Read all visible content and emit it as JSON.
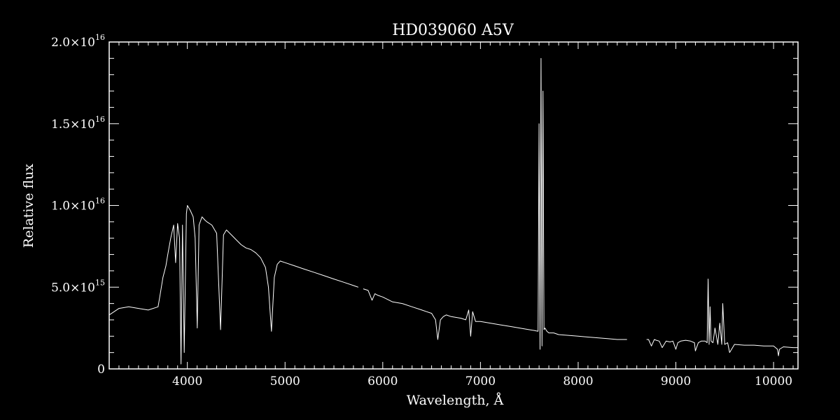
{
  "chart_data": {
    "type": "line",
    "title": "HD039060   A5V",
    "xlabel": "Wavelength, Å",
    "ylabel": "Relative flux",
    "xlim": [
      3200,
      10250
    ],
    "ylim": [
      0,
      2e+16
    ],
    "x_ticks": [
      {
        "value": 4000,
        "label": "4000"
      },
      {
        "value": 5000,
        "label": "5000"
      },
      {
        "value": 6000,
        "label": "6000"
      },
      {
        "value": 7000,
        "label": "7000"
      },
      {
        "value": 8000,
        "label": "8000"
      },
      {
        "value": 9000,
        "label": "9000"
      },
      {
        "value": 10000,
        "label": "10000"
      }
    ],
    "y_ticks": [
      {
        "value": 0,
        "mantissa": "0",
        "exponent": ""
      },
      {
        "value": 5000000000000000.0,
        "mantissa": "5.0×10",
        "exponent": "15"
      },
      {
        "value": 1e+16,
        "mantissa": "1.0×10",
        "exponent": "16"
      },
      {
        "value": 1.5e+16,
        "mantissa": "1.5×10",
        "exponent": "16"
      },
      {
        "value": 2e+16,
        "mantissa": "2.0×10",
        "exponent": "16"
      }
    ],
    "grid": false,
    "background": "#000000",
    "line_color": "#ffffff",
    "series": [
      {
        "segments": [
          {
            "x": [
              3200,
              3300,
              3400,
              3500,
              3600,
              3700,
              3720,
              3750,
              3780,
              3800,
              3830,
              3860,
              3880,
              3900,
              3920,
              3935,
              3950,
              3968,
              3990,
              4000,
              4030,
              4060,
              4080,
              4101,
              4120,
              4150,
              4180,
              4200,
              4250,
              4300,
              4340,
              4370,
              4400,
              4450,
              4500,
              4550,
              4600,
              4650,
              4700,
              4750,
              4800,
              4830,
              4861,
              4890,
              4920,
              4950,
              5000,
              5100,
              5200,
              5300,
              5400,
              5500,
              5600,
              5700,
              5750
            ],
            "y": [
              3300000000000000.0,
              3700000000000000.0,
              3800000000000000.0,
              3700000000000000.0,
              3600000000000000.0,
              3800000000000000.0,
              4500000000000000.0,
              5600000000000000.0,
              6300000000000000.0,
              7000000000000000.0,
              8000000000000000.0,
              8800000000000000.0,
              6500000000000000.0,
              8900000000000000.0,
              8000000000000000.0,
              300000000000000.0,
              8800000000000000.0,
              1000000000000000.0,
              9500000000000000.0,
              1e+16,
              9700000000000000.0,
              9300000000000000.0,
              8000000000000000.0,
              2500000000000000.0,
              8800000000000000.0,
              9300000000000000.0,
              9100000000000000.0,
              9000000000000000.0,
              8800000000000000.0,
              8300000000000000.0,
              2400000000000000.0,
              8200000000000000.0,
              8500000000000000.0,
              8200000000000000.0,
              7900000000000000.0,
              7600000000000000.0,
              7400000000000000.0,
              7300000000000000.0,
              7100000000000000.0,
              6800000000000000.0,
              6200000000000000.0,
              5000000000000000.0,
              2300000000000000.0,
              5600000000000000.0,
              6400000000000000.0,
              6600000000000000.0,
              6500000000000000.0,
              6300000000000000.0,
              6100000000000000.0,
              5900000000000000.0,
              5700000000000000.0,
              5500000000000000.0,
              5300000000000000.0,
              5100000000000000.0,
              5000000000000000.0
            ]
          },
          {
            "x": [
              5800,
              5850,
              5890,
              5920,
              5950,
              6000,
              6100,
              6200,
              6300,
              6400,
              6450,
              6500,
              6540,
              6563,
              6590,
              6620,
              6650,
              6700,
              6800,
              6850,
              6880,
              6900,
              6920,
              6950,
              7000,
              7100,
              7200,
              7300,
              7400,
              7500,
              7550,
              7590,
              7600,
              7610,
              7620,
              7630,
              7640,
              7650,
              7660,
              7680,
              7700,
              7750,
              7800,
              7900,
              8000,
              8100,
              8200,
              8300,
              8400,
              8500
            ],
            "y": [
              4900000000000000.0,
              4800000000000000.0,
              4200000000000000.0,
              4600000000000000.0,
              4500000000000000.0,
              4400000000000000.0,
              4100000000000000.0,
              4000000000000000.0,
              3800000000000000.0,
              3600000000000000.0,
              3500000000000000.0,
              3400000000000000.0,
              3000000000000000.0,
              1800000000000000.0,
              3000000000000000.0,
              3200000000000000.0,
              3300000000000000.0,
              3200000000000000.0,
              3100000000000000.0,
              3000000000000000.0,
              3600000000000000.0,
              2000000000000000.0,
              3500000000000000.0,
              2900000000000000.0,
              2900000000000000.0,
              2800000000000000.0,
              2700000000000000.0,
              2600000000000000.0,
              2500000000000000.0,
              2400000000000000.0,
              2350000000000000.0,
              2300000000000000.0,
              1.5e+16,
              1200000000000000.0,
              1.9e+16,
              1400000000000000.0,
              1.7e+16,
              2400000000000000.0,
              2500000000000000.0,
              2300000000000000.0,
              2200000000000000.0,
              2200000000000000.0,
              2100000000000000.0,
              2050000000000000.0,
              2000000000000000.0,
              1950000000000000.0,
              1900000000000000.0,
              1850000000000000.0,
              1800000000000000.0,
              1800000000000000.0
            ]
          },
          {
            "x": [
              8700,
              8720,
              8750,
              8780,
              8800,
              8830,
              8860,
              8900,
              8940,
              8970,
              9000,
              9020,
              9050,
              9100,
              9150,
              9190,
              9200,
              9230,
              9260,
              9300,
              9320,
              9330,
              9340,
              9350,
              9360,
              9380,
              9400,
              9430,
              9450,
              9470,
              9480,
              9500,
              9530,
              9550,
              9600,
              9700,
              9800,
              9900,
              10000,
              10040,
              10050,
              10060,
              10100,
              10200,
              10250
            ],
            "y": [
              1800000000000000.0,
              1800000000000000.0,
              1400000000000000.0,
              1800000000000000.0,
              1750000000000000.0,
              1700000000000000.0,
              1300000000000000.0,
              1700000000000000.0,
              1650000000000000.0,
              1700000000000000.0,
              1200000000000000.0,
              1600000000000000.0,
              1700000000000000.0,
              1750000000000000.0,
              1700000000000000.0,
              1600000000000000.0,
              1100000000000000.0,
              1600000000000000.0,
              1700000000000000.0,
              1700000000000000.0,
              1600000000000000.0,
              5500000000000000.0,
              1500000000000000.0,
              3800000000000000.0,
              1700000000000000.0,
              1600000000000000.0,
              2500000000000000.0,
              1500000000000000.0,
              2800000000000000.0,
              1500000000000000.0,
              4000000000000000.0,
              1500000000000000.0,
              1600000000000000.0,
              1000000000000000.0,
              1500000000000000.0,
              1450000000000000.0,
              1450000000000000.0,
              1400000000000000.0,
              1400000000000000.0,
              1200000000000000.0,
              800000000000000.0,
              1200000000000000.0,
              1350000000000000.0,
              1300000000000000.0,
              1300000000000000.0
            ]
          }
        ]
      }
    ]
  }
}
